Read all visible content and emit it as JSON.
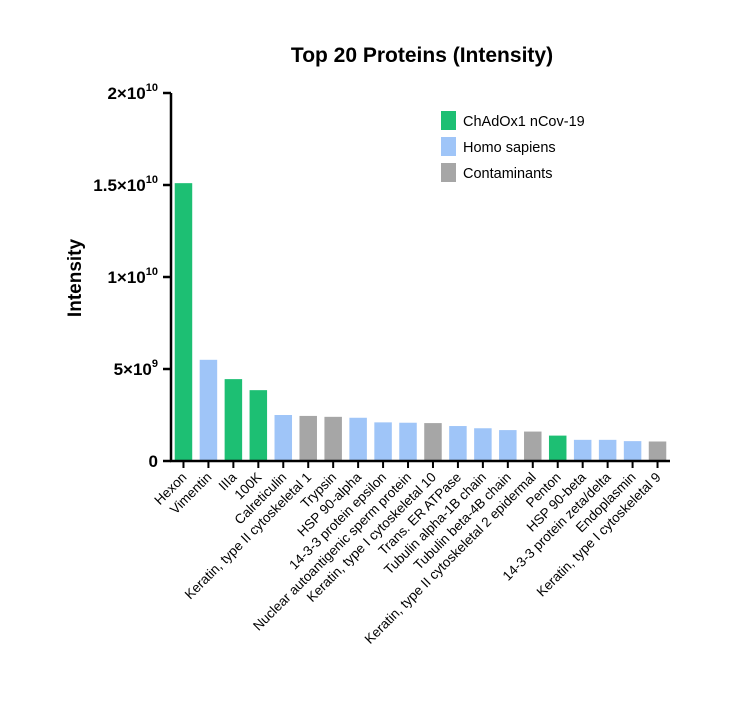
{
  "chart_data": {
    "type": "bar",
    "title": "Top 20 Proteins (Intensity)",
    "ylabel": "Intensity",
    "xlabel": "",
    "ylim": [
      0,
      20000000000
    ],
    "yticks": [
      {
        "value": 0,
        "label": "0"
      },
      {
        "value": 5000000000,
        "label": "5×10",
        "exp": "9"
      },
      {
        "value": 10000000000,
        "label": "1×10",
        "exp": "10"
      },
      {
        "value": 15000000000,
        "label": "1.5×10",
        "exp": "10"
      },
      {
        "value": 20000000000,
        "label": "2×10",
        "exp": "10"
      }
    ],
    "grid": false,
    "legend_position": "top-right",
    "groups": [
      {
        "name": "ChAdOx1 nCov-19",
        "color": "#1dbf73"
      },
      {
        "name": "Homo sapiens",
        "color": "#9fc5f8"
      },
      {
        "name": "Contaminants",
        "color": "#a6a6a6"
      }
    ],
    "categories": [
      "Hexon",
      "Vimentin",
      "IIIa",
      "100K",
      "Calreticulin",
      "Keratin, type II cytoskeletal 1",
      "Trypsin",
      "HSP 90-alpha",
      "14-3-3 protein epsilon",
      "Nuclear autoantigenic sperm protein",
      "Keratin, type I cytoskeletal 10",
      "Trans. ER ATPase",
      "Tubulin alpha-1B chain",
      "Tubulin beta-4B chain",
      "Keratin, type II cytoskeletal 2 epidermal",
      "Penton",
      "HSP 90-beta",
      "14-3-3 protein zeta/delta",
      "Endoplasmin",
      "Keratin, type I cytoskeletal 9"
    ],
    "values": [
      15100000000,
      5500000000,
      4450000000,
      3850000000,
      2500000000,
      2450000000,
      2400000000,
      2350000000,
      2100000000,
      2080000000,
      2060000000,
      1900000000,
      1780000000,
      1680000000,
      1600000000,
      1380000000,
      1150000000,
      1150000000,
      1080000000,
      1060000000
    ],
    "group_index": [
      0,
      1,
      0,
      0,
      1,
      2,
      2,
      1,
      1,
      1,
      2,
      1,
      1,
      1,
      2,
      0,
      1,
      1,
      1,
      2
    ]
  }
}
